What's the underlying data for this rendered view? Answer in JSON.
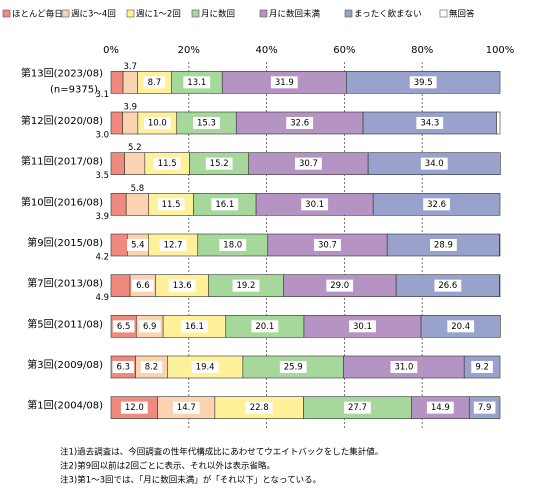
{
  "chart_data": {
    "type": "stacked-bar-horizontal",
    "categories": [
      "第13回(2023/08)",
      "第12回(2020/08)",
      "第11回(2017/08)",
      "第10回(2016/08)",
      "第9回(2015/08)",
      "第7回(2013/08)",
      "第5回(2011/08)",
      "第3回(2009/08)",
      "第1回(2004/08)"
    ],
    "annotations": [
      "(n=9375)"
    ],
    "xlim": [
      0,
      100
    ],
    "xticks": [
      {
        "value": 0,
        "label": "0%"
      },
      {
        "value": 20,
        "label": "20%"
      },
      {
        "value": 40,
        "label": "40%"
      },
      {
        "value": 60,
        "label": "60%"
      },
      {
        "value": 80,
        "label": "80%"
      },
      {
        "value": 100,
        "label": "100%"
      }
    ],
    "grid": true,
    "series": [
      {
        "name": "ほとんど毎日",
        "color": "#f08a7e",
        "values": [
          3.1,
          3,
          3.5,
          3.9,
          4.2,
          4.9,
          6.5,
          6.3,
          12
        ],
        "value_labels": [
          "3.1",
          "3.0",
          "3.5",
          "3.9",
          "4.2",
          "4.9",
          "6.5",
          "6.3",
          "12.0"
        ]
      },
      {
        "name": "週に3～4回",
        "color": "#fcd3b0",
        "values": [
          3.7,
          3.9,
          5.2,
          5.8,
          5.4,
          6.6,
          6.9,
          8.2,
          14.7
        ],
        "value_labels": [
          "3.7",
          "3.9",
          "5.2",
          "5.8",
          "5.4",
          "6.6",
          "6.9",
          "8.2",
          "14.7"
        ]
      },
      {
        "name": "週に1～2回",
        "color": "#fff09a",
        "values": [
          8.7,
          10,
          11.5,
          11.5,
          12.7,
          13.6,
          16.1,
          19.4,
          22.8
        ],
        "value_labels": [
          "8.7",
          "10.0",
          "11.5",
          "11.5",
          "12.7",
          "13.6",
          "16.1",
          "19.4",
          "22.8"
        ]
      },
      {
        "name": "月に数回",
        "color": "#a6d89c",
        "values": [
          13.1,
          15.3,
          15.2,
          16.1,
          18,
          19.2,
          20.1,
          25.9,
          27.7
        ],
        "value_labels": [
          "13.1",
          "15.3",
          "15.2",
          "16.1",
          "18.0",
          "19.2",
          "20.1",
          "25.9",
          "27.7"
        ]
      },
      {
        "name": "月に数回未満",
        "color": "#b594c4",
        "values": [
          31.9,
          32.6,
          30.7,
          30.1,
          30.7,
          29,
          30.1,
          31,
          14.9
        ],
        "value_labels": [
          "31.9",
          "32.6",
          "30.7",
          "30.1",
          "30.7",
          "29.0",
          "30.1",
          "31.0",
          "14.9"
        ]
      },
      {
        "name": "まったく飲まない",
        "color": "#98a2cc",
        "values": [
          39.5,
          34.3,
          34,
          32.6,
          28.9,
          26.6,
          20.4,
          9.2,
          7.9
        ],
        "value_labels": [
          "39.5",
          "34.3",
          "34.0",
          "32.6",
          "28.9",
          "26.6",
          "20.4",
          "9.2",
          "7.9"
        ]
      },
      {
        "name": "無回答",
        "color": "#ffffff",
        "values": [
          0,
          0.9,
          0,
          0,
          0.1,
          0.1,
          0,
          0,
          0
        ]
      }
    ],
    "notes": [
      "注1)過去調査は、今回調査の性年代構成比にあわせてウエイトバックをした集計値。",
      "注2)第9回以前は2回ごとに表示、それ以外は表示省略。",
      "注3)第1～3回では、「月に数回未満」が「それ以下」となっている。"
    ]
  }
}
